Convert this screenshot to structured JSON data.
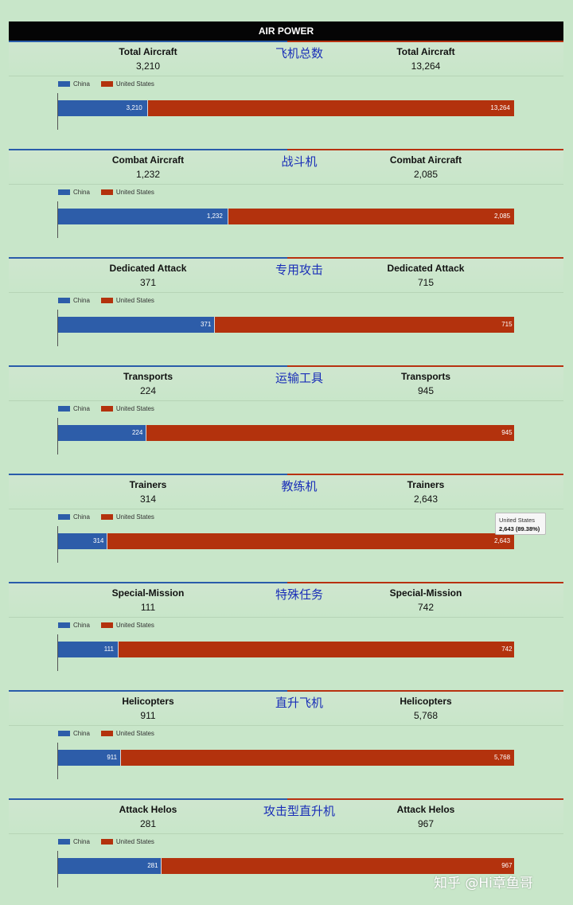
{
  "header": {
    "title": "AIR POWER"
  },
  "legend": {
    "china": "China",
    "us": "United States"
  },
  "colors": {
    "china": "#2d5da9",
    "us": "#b3320d",
    "title_cn": "#1a2fb8"
  },
  "tooltip": {
    "series": "United States",
    "value": "2,643 (89.38%)"
  },
  "watermark": "知乎 @Hi章鱼哥",
  "chart_data": [
    {
      "type": "bar",
      "stacked": true,
      "orientation": "horizontal",
      "category": "Total Aircraft",
      "title_cn": "飞机总数",
      "series": [
        {
          "name": "China",
          "value": 3210,
          "label": "3,210"
        },
        {
          "name": "United States",
          "value": 13264,
          "label": "13,264"
        }
      ]
    },
    {
      "type": "bar",
      "stacked": true,
      "orientation": "horizontal",
      "category": "Combat Aircraft",
      "title_cn": "战斗机",
      "series": [
        {
          "name": "China",
          "value": 1232,
          "label": "1,232"
        },
        {
          "name": "United States",
          "value": 2085,
          "label": "2,085"
        }
      ]
    },
    {
      "type": "bar",
      "stacked": true,
      "orientation": "horizontal",
      "category": "Dedicated Attack",
      "title_cn": "专用攻击",
      "series": [
        {
          "name": "China",
          "value": 371,
          "label": "371"
        },
        {
          "name": "United States",
          "value": 715,
          "label": "715"
        }
      ]
    },
    {
      "type": "bar",
      "stacked": true,
      "orientation": "horizontal",
      "category": "Transports",
      "title_cn": "运输工具",
      "series": [
        {
          "name": "China",
          "value": 224,
          "label": "224"
        },
        {
          "name": "United States",
          "value": 945,
          "label": "945"
        }
      ]
    },
    {
      "type": "bar",
      "stacked": true,
      "orientation": "horizontal",
      "category": "Trainers",
      "title_cn": "教练机",
      "series": [
        {
          "name": "China",
          "value": 314,
          "label": "314"
        },
        {
          "name": "United States",
          "value": 2643,
          "label": "2,643"
        }
      ]
    },
    {
      "type": "bar",
      "stacked": true,
      "orientation": "horizontal",
      "category": "Special-Mission",
      "title_cn": "特殊任务",
      "series": [
        {
          "name": "China",
          "value": 111,
          "label": "111"
        },
        {
          "name": "United States",
          "value": 742,
          "label": "742"
        }
      ]
    },
    {
      "type": "bar",
      "stacked": true,
      "orientation": "horizontal",
      "category": "Helicopters",
      "title_cn": "直升飞机",
      "series": [
        {
          "name": "China",
          "value": 911,
          "label": "911"
        },
        {
          "name": "United States",
          "value": 5768,
          "label": "5,768"
        }
      ]
    },
    {
      "type": "bar",
      "stacked": true,
      "orientation": "horizontal",
      "category": "Attack Helos",
      "title_cn": "攻击型直升机",
      "series": [
        {
          "name": "China",
          "value": 281,
          "label": "281"
        },
        {
          "name": "United States",
          "value": 967,
          "label": "967"
        }
      ]
    }
  ]
}
